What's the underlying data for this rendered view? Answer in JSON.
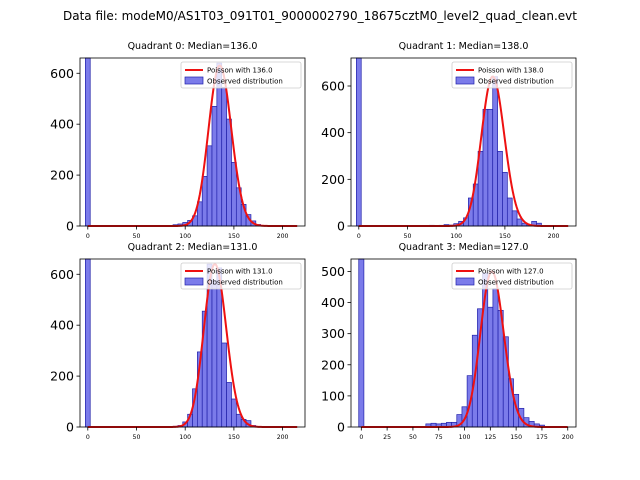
{
  "figure": {
    "suptitle": "Data file: modeM0/AS1T03_091T01_9000002790_18675cztM0_level2_quad_clean.evt"
  },
  "colors": {
    "bar_fill": "#7b7bea",
    "bar_edge": "#2222aa",
    "poisson_line": "#ee1111",
    "axis": "#000000"
  },
  "chart_data": [
    {
      "type": "bar",
      "title": "Quadrant 0: Median=136.0",
      "xlim": [
        -8,
        223
      ],
      "ylim": [
        0,
        660
      ],
      "xticks": [
        0,
        50,
        100,
        150,
        200
      ],
      "yticks": [
        0,
        200,
        400,
        600
      ],
      "legend": {
        "placement": "top-right",
        "line_label": "Poisson with 136.0",
        "bar_label": "Observed distribution"
      },
      "spike": {
        "x": 0,
        "value": 660
      },
      "median": 136.0,
      "poisson_peak": 630,
      "bins": [
        {
          "x": 85,
          "value": 2
        },
        {
          "x": 90,
          "value": 5
        },
        {
          "x": 95,
          "value": 8
        },
        {
          "x": 100,
          "value": 14
        },
        {
          "x": 105,
          "value": 22
        },
        {
          "x": 110,
          "value": 40
        },
        {
          "x": 115,
          "value": 95
        },
        {
          "x": 120,
          "value": 195
        },
        {
          "x": 125,
          "value": 315
        },
        {
          "x": 130,
          "value": 470
        },
        {
          "x": 135,
          "value": 640
        },
        {
          "x": 140,
          "value": 545
        },
        {
          "x": 145,
          "value": 420
        },
        {
          "x": 150,
          "value": 250
        },
        {
          "x": 155,
          "value": 150
        },
        {
          "x": 160,
          "value": 85
        },
        {
          "x": 165,
          "value": 45
        },
        {
          "x": 170,
          "value": 20
        },
        {
          "x": 175,
          "value": 6
        }
      ]
    },
    {
      "type": "bar",
      "title": "Quadrant 1: Median=138.0",
      "xlim": [
        -8,
        223
      ],
      "ylim": [
        0,
        720
      ],
      "xticks": [
        0,
        50,
        100,
        150,
        200
      ],
      "yticks": [
        0,
        200,
        400,
        600
      ],
      "legend": {
        "placement": "top-right",
        "line_label": "Poisson with 138.0",
        "bar_label": "Observed distribution"
      },
      "spike": {
        "x": 0,
        "value": 720
      },
      "median": 138.0,
      "poisson_peak": 640,
      "bins": [
        {
          "x": 75,
          "value": 3
        },
        {
          "x": 85,
          "value": 3
        },
        {
          "x": 90,
          "value": 6
        },
        {
          "x": 95,
          "value": 4
        },
        {
          "x": 100,
          "value": 10
        },
        {
          "x": 105,
          "value": 20
        },
        {
          "x": 110,
          "value": 35
        },
        {
          "x": 115,
          "value": 120
        },
        {
          "x": 120,
          "value": 180
        },
        {
          "x": 125,
          "value": 320
        },
        {
          "x": 130,
          "value": 500
        },
        {
          "x": 135,
          "value": 500
        },
        {
          "x": 140,
          "value": 640
        },
        {
          "x": 145,
          "value": 320
        },
        {
          "x": 150,
          "value": 230
        },
        {
          "x": 155,
          "value": 120
        },
        {
          "x": 160,
          "value": 65
        },
        {
          "x": 165,
          "value": 30
        },
        {
          "x": 170,
          "value": 12
        },
        {
          "x": 175,
          "value": 5
        },
        {
          "x": 180,
          "value": 20
        },
        {
          "x": 185,
          "value": 12
        }
      ]
    },
    {
      "type": "bar",
      "title": "Quadrant 2: Median=131.0",
      "xlim": [
        -8,
        223
      ],
      "ylim": [
        0,
        660
      ],
      "xticks": [
        0,
        50,
        100,
        150,
        200
      ],
      "yticks": [
        0,
        200,
        400,
        600
      ],
      "legend": {
        "placement": "top-right",
        "line_label": "Poisson with 131.0",
        "bar_label": "Observed distribution"
      },
      "spike": {
        "x": 0,
        "value": 660
      },
      "median": 131.0,
      "poisson_peak": 640,
      "bins": [
        {
          "x": 75,
          "value": 2
        },
        {
          "x": 80,
          "value": 2
        },
        {
          "x": 90,
          "value": 3
        },
        {
          "x": 95,
          "value": 6
        },
        {
          "x": 100,
          "value": 20
        },
        {
          "x": 105,
          "value": 50
        },
        {
          "x": 110,
          "value": 150
        },
        {
          "x": 115,
          "value": 295
        },
        {
          "x": 120,
          "value": 455
        },
        {
          "x": 125,
          "value": 640
        },
        {
          "x": 130,
          "value": 575
        },
        {
          "x": 135,
          "value": 625
        },
        {
          "x": 140,
          "value": 330
        },
        {
          "x": 145,
          "value": 175
        },
        {
          "x": 150,
          "value": 110
        },
        {
          "x": 155,
          "value": 50
        },
        {
          "x": 160,
          "value": 30
        },
        {
          "x": 165,
          "value": 25
        },
        {
          "x": 170,
          "value": 6
        }
      ]
    },
    {
      "type": "bar",
      "title": "Quadrant 3: Median=127.0",
      "xlim": [
        -10,
        208
      ],
      "ylim": [
        0,
        540
      ],
      "xticks": [
        0,
        25,
        50,
        75,
        100,
        125,
        150,
        175,
        200
      ],
      "yticks": [
        0,
        100,
        200,
        300,
        400,
        500
      ],
      "legend": {
        "placement": "top-right",
        "line_label": "Poisson with 127.0",
        "bar_label": "Observed distribution"
      },
      "spike": {
        "x": 0,
        "value": 540
      },
      "median": 127.0,
      "poisson_peak": 500,
      "bins": [
        {
          "x": 65,
          "value": 10
        },
        {
          "x": 70,
          "value": 12
        },
        {
          "x": 75,
          "value": 10
        },
        {
          "x": 80,
          "value": 12
        },
        {
          "x": 85,
          "value": 15
        },
        {
          "x": 90,
          "value": 15
        },
        {
          "x": 95,
          "value": 40
        },
        {
          "x": 100,
          "value": 65
        },
        {
          "x": 105,
          "value": 165
        },
        {
          "x": 110,
          "value": 295
        },
        {
          "x": 115,
          "value": 380
        },
        {
          "x": 120,
          "value": 495
        },
        {
          "x": 125,
          "value": 385
        },
        {
          "x": 130,
          "value": 445
        },
        {
          "x": 135,
          "value": 375
        },
        {
          "x": 140,
          "value": 290
        },
        {
          "x": 145,
          "value": 155
        },
        {
          "x": 150,
          "value": 105
        },
        {
          "x": 155,
          "value": 60
        },
        {
          "x": 160,
          "value": 30
        },
        {
          "x": 165,
          "value": 18
        },
        {
          "x": 170,
          "value": 10
        },
        {
          "x": 175,
          "value": 6
        }
      ]
    }
  ]
}
